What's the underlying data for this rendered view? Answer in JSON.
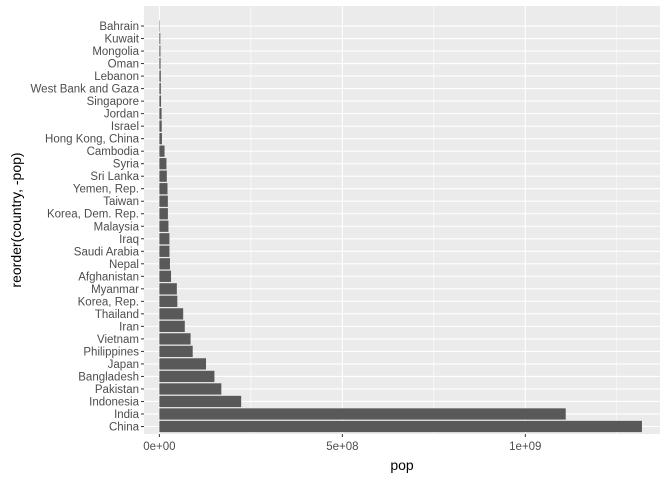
{
  "chart_data": {
    "type": "bar",
    "orientation": "horizontal",
    "title": "",
    "xlabel": "pop",
    "ylabel": "reorder(country, -pop)",
    "grid": true,
    "legend": "none",
    "xlim": [
      -42000000,
      1368000000
    ],
    "x_ticks": [
      0,
      500000000,
      1000000000
    ],
    "x_tick_labels": [
      "0e+00",
      "5e+08",
      "1e+09"
    ],
    "categories": [
      "China",
      "India",
      "Indonesia",
      "Pakistan",
      "Bangladesh",
      "Japan",
      "Philippines",
      "Vietnam",
      "Iran",
      "Thailand",
      "Korea, Rep.",
      "Myanmar",
      "Afghanistan",
      "Nepal",
      "Saudi Arabia",
      "Iraq",
      "Malaysia",
      "Korea, Dem. Rep.",
      "Taiwan",
      "Yemen, Rep.",
      "Sri Lanka",
      "Syria",
      "Cambodia",
      "Hong Kong, China",
      "Israel",
      "Jordan",
      "Singapore",
      "West Bank and Gaza",
      "Lebanon",
      "Oman",
      "Mongolia",
      "Kuwait",
      "Bahrain"
    ],
    "values": [
      1318683096,
      1110396331,
      223547000,
      169270617,
      150448339,
      127467972,
      91077287,
      85262356,
      69453570,
      65068149,
      49044790,
      47761980,
      31889923,
      28901790,
      27601038,
      27499638,
      24821286,
      23301725,
      23174294,
      22211743,
      20378239,
      19314747,
      14131858,
      6980412,
      6426679,
      6053193,
      4553009,
      4018332,
      3921278,
      3204897,
      2874127,
      2505559,
      708573
    ]
  },
  "colors": {
    "panel_background": "#ebebeb",
    "grid_major": "#ffffff",
    "bar_fill": "#595959",
    "tick_text": "#4d4d4d",
    "axis_title": "#000000"
  }
}
